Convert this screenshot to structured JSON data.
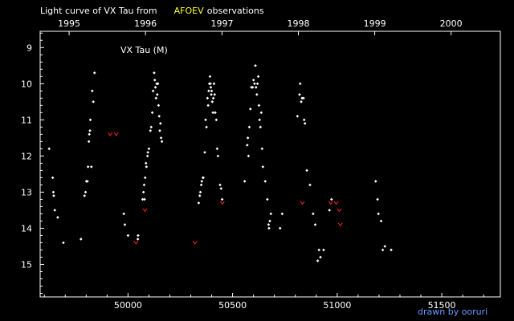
{
  "title": {
    "prefix": "Light curve of VX Tau from",
    "source": "AFOEV",
    "suffix": "observations"
  },
  "credit": "drawn by ooruri",
  "colors": {
    "background": "#000000",
    "axis": "#ffffff",
    "text": "#ffffff",
    "source_highlight": "#ffff33",
    "observation": "#ffffff",
    "upper_limit": "#ff2222",
    "credit": "#6699ff"
  },
  "chart_data": {
    "type": "scatter",
    "xlabel": "",
    "ylabel": "",
    "xlim": [
      49580,
      51780
    ],
    "ylim": [
      15.9,
      8.55
    ],
    "y_inverted": true,
    "grid": false,
    "legend": "none",
    "annotation": "VX Tau (M)",
    "x_ticks": [
      50000,
      50500,
      51000,
      51500
    ],
    "x_tick_labels": [
      "50000",
      "50500",
      "51000",
      "51500"
    ],
    "year_ticks": [
      1995,
      1996,
      1997,
      1998,
      1999,
      2000
    ],
    "year_tick_labels": [
      "1995",
      "1996",
      "1997",
      "1998",
      "1999",
      "2000"
    ],
    "y_ticks": [
      9,
      10,
      11,
      12,
      13,
      14,
      15
    ],
    "y_tick_labels": [
      "9",
      "10",
      "11",
      "12",
      "13",
      "14",
      "15"
    ],
    "series": [
      {
        "kind": "observation",
        "points": [
          [
            49623,
            11.8
          ],
          [
            49640,
            12.6
          ],
          [
            49643,
            13.0
          ],
          [
            49645,
            13.1
          ],
          [
            49650,
            13.5
          ],
          [
            49664,
            13.7
          ],
          [
            49691,
            14.4
          ],
          [
            49775,
            14.3
          ],
          [
            49792,
            13.1
          ],
          [
            49797,
            13.0
          ],
          [
            49801,
            12.7
          ],
          [
            49806,
            12.7
          ],
          [
            49809,
            12.3
          ],
          [
            49813,
            11.6
          ],
          [
            49815,
            11.4
          ],
          [
            49818,
            11.3
          ],
          [
            49820,
            11.0
          ],
          [
            49825,
            12.3
          ],
          [
            49829,
            10.2
          ],
          [
            49834,
            10.5
          ],
          [
            49840,
            9.7
          ],
          [
            49980,
            13.6
          ],
          [
            49985,
            13.9
          ],
          [
            50000,
            14.2
          ],
          [
            50047,
            14.3
          ],
          [
            50048,
            14.2
          ],
          [
            50070,
            13.2
          ],
          [
            50074,
            13.0
          ],
          [
            50077,
            12.8
          ],
          [
            50079,
            13.2
          ],
          [
            50082,
            12.6
          ],
          [
            50086,
            12.2
          ],
          [
            50088,
            12.3
          ],
          [
            50093,
            12.0
          ],
          [
            50095,
            11.9
          ],
          [
            50100,
            11.8
          ],
          [
            50107,
            11.3
          ],
          [
            50111,
            11.2
          ],
          [
            50116,
            10.8
          ],
          [
            50120,
            10.2
          ],
          [
            50125,
            9.7
          ],
          [
            50128,
            9.9
          ],
          [
            50131,
            10.1
          ],
          [
            50134,
            10.4
          ],
          [
            50137,
            10.0
          ],
          [
            50140,
            10.3
          ],
          [
            50143,
            10.0
          ],
          [
            50146,
            10.6
          ],
          [
            50149,
            10.9
          ],
          [
            50152,
            11.3
          ],
          [
            50155,
            11.1
          ],
          [
            50158,
            11.5
          ],
          [
            50162,
            11.6
          ],
          [
            50338,
            13.3
          ],
          [
            50343,
            13.1
          ],
          [
            50346,
            13.0
          ],
          [
            50350,
            12.8
          ],
          [
            50353,
            12.7
          ],
          [
            50358,
            12.6
          ],
          [
            50360,
            12.6
          ],
          [
            50367,
            11.9
          ],
          [
            50371,
            11.0
          ],
          [
            50375,
            11.2
          ],
          [
            50380,
            10.4
          ],
          [
            50383,
            10.6
          ],
          [
            50386,
            10.2
          ],
          [
            50389,
            10.0
          ],
          [
            50392,
            9.8
          ],
          [
            50394,
            10.0
          ],
          [
            50396,
            10.1
          ],
          [
            50398,
            10.3
          ],
          [
            50400,
            10.2
          ],
          [
            50403,
            10.5
          ],
          [
            50406,
            10.8
          ],
          [
            50408,
            10.4
          ],
          [
            50411,
            10.0
          ],
          [
            50414,
            10.3
          ],
          [
            50417,
            10.8
          ],
          [
            50422,
            11.0
          ],
          [
            50426,
            11.8
          ],
          [
            50430,
            12.0
          ],
          [
            50440,
            12.8
          ],
          [
            50445,
            12.9
          ],
          [
            50450,
            13.2
          ],
          [
            50558,
            12.7
          ],
          [
            50570,
            11.7
          ],
          [
            50573,
            11.5
          ],
          [
            50576,
            12.0
          ],
          [
            50580,
            11.2
          ],
          [
            50585,
            10.7
          ],
          [
            50590,
            10.1
          ],
          [
            50596,
            10.1
          ],
          [
            50600,
            9.9
          ],
          [
            50605,
            10.0
          ],
          [
            50609,
            9.5
          ],
          [
            50612,
            10.1
          ],
          [
            50616,
            10.3
          ],
          [
            50619,
            10.0
          ],
          [
            50623,
            9.8
          ],
          [
            50626,
            10.6
          ],
          [
            50629,
            11.0
          ],
          [
            50633,
            11.2
          ],
          [
            50637,
            10.8
          ],
          [
            50641,
            11.8
          ],
          [
            50645,
            12.3
          ],
          [
            50656,
            12.7
          ],
          [
            50666,
            13.2
          ],
          [
            50672,
            13.9
          ],
          [
            50674,
            14.0
          ],
          [
            50678,
            13.8
          ],
          [
            50683,
            13.6
          ],
          [
            50727,
            14.0
          ],
          [
            50737,
            13.6
          ],
          [
            50810,
            10.9
          ],
          [
            50820,
            10.3
          ],
          [
            50823,
            10.0
          ],
          [
            50828,
            10.5
          ],
          [
            50832,
            10.4
          ],
          [
            50839,
            10.4
          ],
          [
            50842,
            11.0
          ],
          [
            50846,
            11.1
          ],
          [
            50855,
            12.4
          ],
          [
            50870,
            12.8
          ],
          [
            50885,
            13.6
          ],
          [
            50895,
            13.9
          ],
          [
            50907,
            14.9
          ],
          [
            50913,
            14.6
          ],
          [
            50920,
            14.8
          ],
          [
            50935,
            14.6
          ],
          [
            50963,
            13.5
          ],
          [
            50973,
            13.2
          ],
          [
            51184,
            12.7
          ],
          [
            51193,
            13.2
          ],
          [
            51197,
            13.6
          ],
          [
            51210,
            13.8
          ],
          [
            51218,
            14.6
          ],
          [
            51228,
            14.5
          ],
          [
            51258,
            14.6
          ]
        ]
      },
      {
        "kind": "upper_limit",
        "points": [
          [
            49915,
            11.4
          ],
          [
            49944,
            11.4
          ],
          [
            50038,
            14.4
          ],
          [
            50081,
            13.5
          ],
          [
            50320,
            14.4
          ],
          [
            50451,
            13.3
          ],
          [
            50834,
            13.3
          ],
          [
            50969,
            13.3
          ],
          [
            50995,
            13.3
          ],
          [
            51010,
            13.5
          ],
          [
            51015,
            13.9
          ]
        ]
      }
    ]
  }
}
